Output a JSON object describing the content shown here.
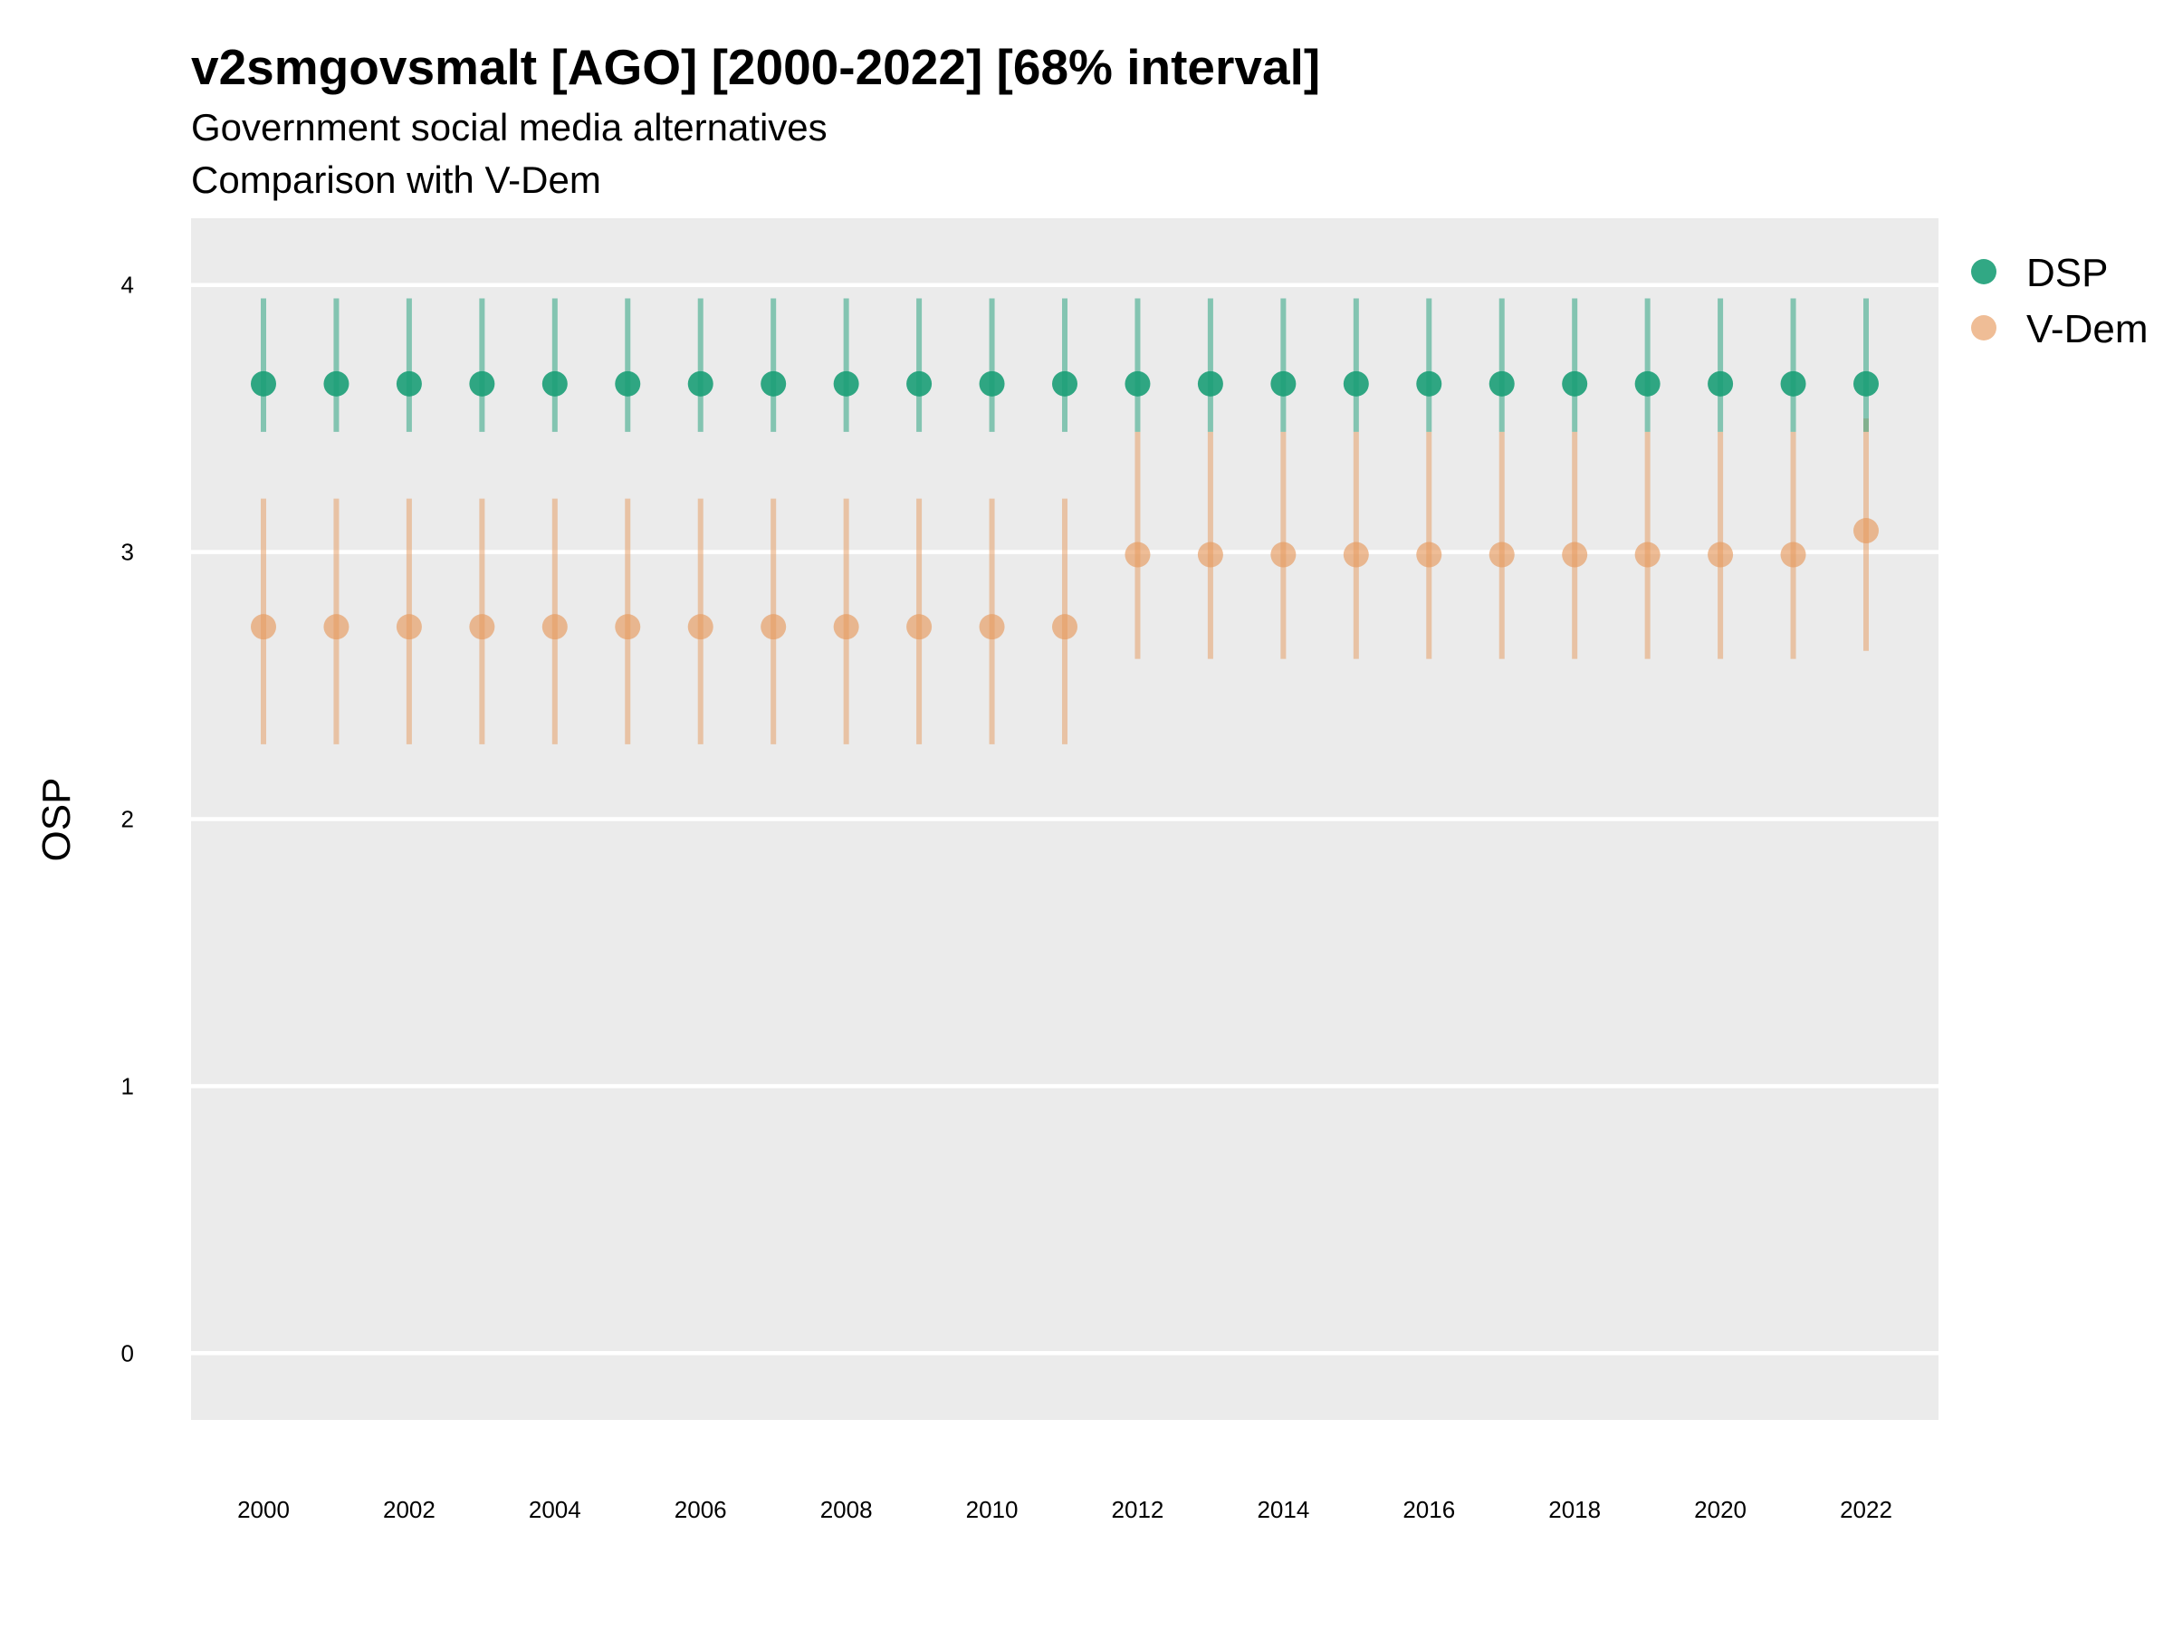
{
  "chart_data": {
    "type": "scatter",
    "title": "v2smgovsmalt [AGO] [2000-2022] [68% interval]",
    "subtitle": "Government social media alternatives",
    "subtitle2": "Comparison with V-Dem",
    "ylabel": "OSP",
    "xlabel": "",
    "ylim": [
      -0.25,
      4.25
    ],
    "yticks": [
      0,
      1,
      2,
      3,
      4
    ],
    "x": [
      2000,
      2001,
      2002,
      2003,
      2004,
      2005,
      2006,
      2007,
      2008,
      2009,
      2010,
      2011,
      2012,
      2013,
      2014,
      2015,
      2016,
      2017,
      2018,
      2019,
      2020,
      2021,
      2022
    ],
    "xtick_labels": [
      "2000",
      "2002",
      "2004",
      "2006",
      "2008",
      "2010",
      "2012",
      "2014",
      "2016",
      "2018",
      "2020",
      "2022"
    ],
    "grid": true,
    "legend_position": "right",
    "series": [
      {
        "name": "DSP",
        "color": "#1b9e77",
        "values": [
          3.63,
          3.63,
          3.63,
          3.63,
          3.63,
          3.63,
          3.63,
          3.63,
          3.63,
          3.63,
          3.63,
          3.63,
          3.63,
          3.63,
          3.63,
          3.63,
          3.63,
          3.63,
          3.63,
          3.63,
          3.63,
          3.63,
          3.63
        ],
        "lower": [
          3.45,
          3.45,
          3.45,
          3.45,
          3.45,
          3.45,
          3.45,
          3.45,
          3.45,
          3.45,
          3.45,
          3.45,
          3.45,
          3.45,
          3.45,
          3.45,
          3.45,
          3.45,
          3.45,
          3.45,
          3.45,
          3.45,
          3.45
        ],
        "upper": [
          3.95,
          3.95,
          3.95,
          3.95,
          3.95,
          3.95,
          3.95,
          3.95,
          3.95,
          3.95,
          3.95,
          3.95,
          3.95,
          3.95,
          3.95,
          3.95,
          3.95,
          3.95,
          3.95,
          3.95,
          3.95,
          3.95,
          3.95
        ]
      },
      {
        "name": "V-Dem",
        "color": "#e69a5e",
        "values": [
          2.72,
          2.72,
          2.72,
          2.72,
          2.72,
          2.72,
          2.72,
          2.72,
          2.72,
          2.72,
          2.72,
          2.72,
          2.99,
          2.99,
          2.99,
          2.99,
          2.99,
          2.99,
          2.99,
          2.99,
          2.99,
          2.99,
          3.08
        ],
        "lower": [
          2.28,
          2.28,
          2.28,
          2.28,
          2.28,
          2.28,
          2.28,
          2.28,
          2.28,
          2.28,
          2.28,
          2.28,
          2.6,
          2.6,
          2.6,
          2.6,
          2.6,
          2.6,
          2.6,
          2.6,
          2.6,
          2.6,
          2.63
        ],
        "upper": [
          3.2,
          3.2,
          3.2,
          3.2,
          3.2,
          3.2,
          3.2,
          3.2,
          3.2,
          3.2,
          3.2,
          3.2,
          3.45,
          3.45,
          3.45,
          3.45,
          3.45,
          3.45,
          3.45,
          3.45,
          3.45,
          3.45,
          3.5
        ]
      }
    ]
  }
}
